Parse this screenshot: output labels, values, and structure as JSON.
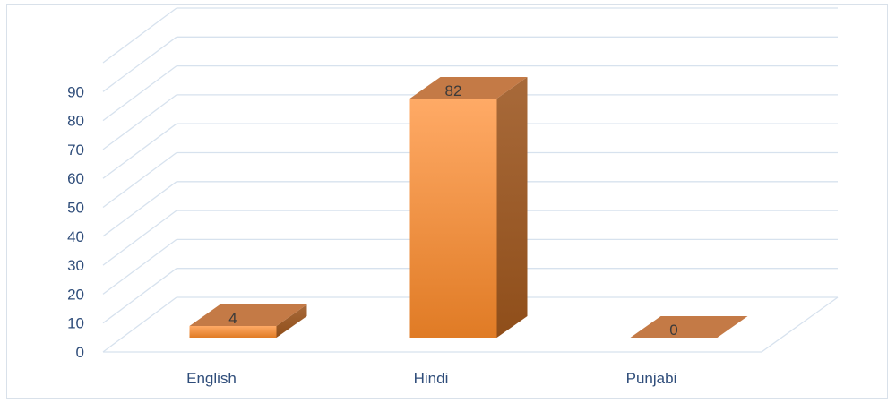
{
  "chart_data": {
    "type": "bar",
    "style": "3d-column",
    "categories": [
      "English",
      "Hindi",
      "Punjabi"
    ],
    "values": [
      4,
      82,
      0
    ],
    "data_labels": [
      "4",
      "82",
      "0"
    ],
    "title": "",
    "xlabel": "",
    "ylabel": "",
    "ylim": [
      0,
      90
    ],
    "yticks": [
      0,
      10,
      20,
      30,
      40,
      50,
      60,
      70,
      80,
      90
    ],
    "grid": true,
    "legend": "none",
    "colors": {
      "bar_front": "#f79646",
      "bar_front_light": "#ffaa66",
      "bar_front_dark": "#e07b25",
      "bar_top": "#c47a46",
      "bar_side": "#a45d22",
      "gridline": "#d7e2ee",
      "tick_text": "#2f4d7a"
    }
  }
}
